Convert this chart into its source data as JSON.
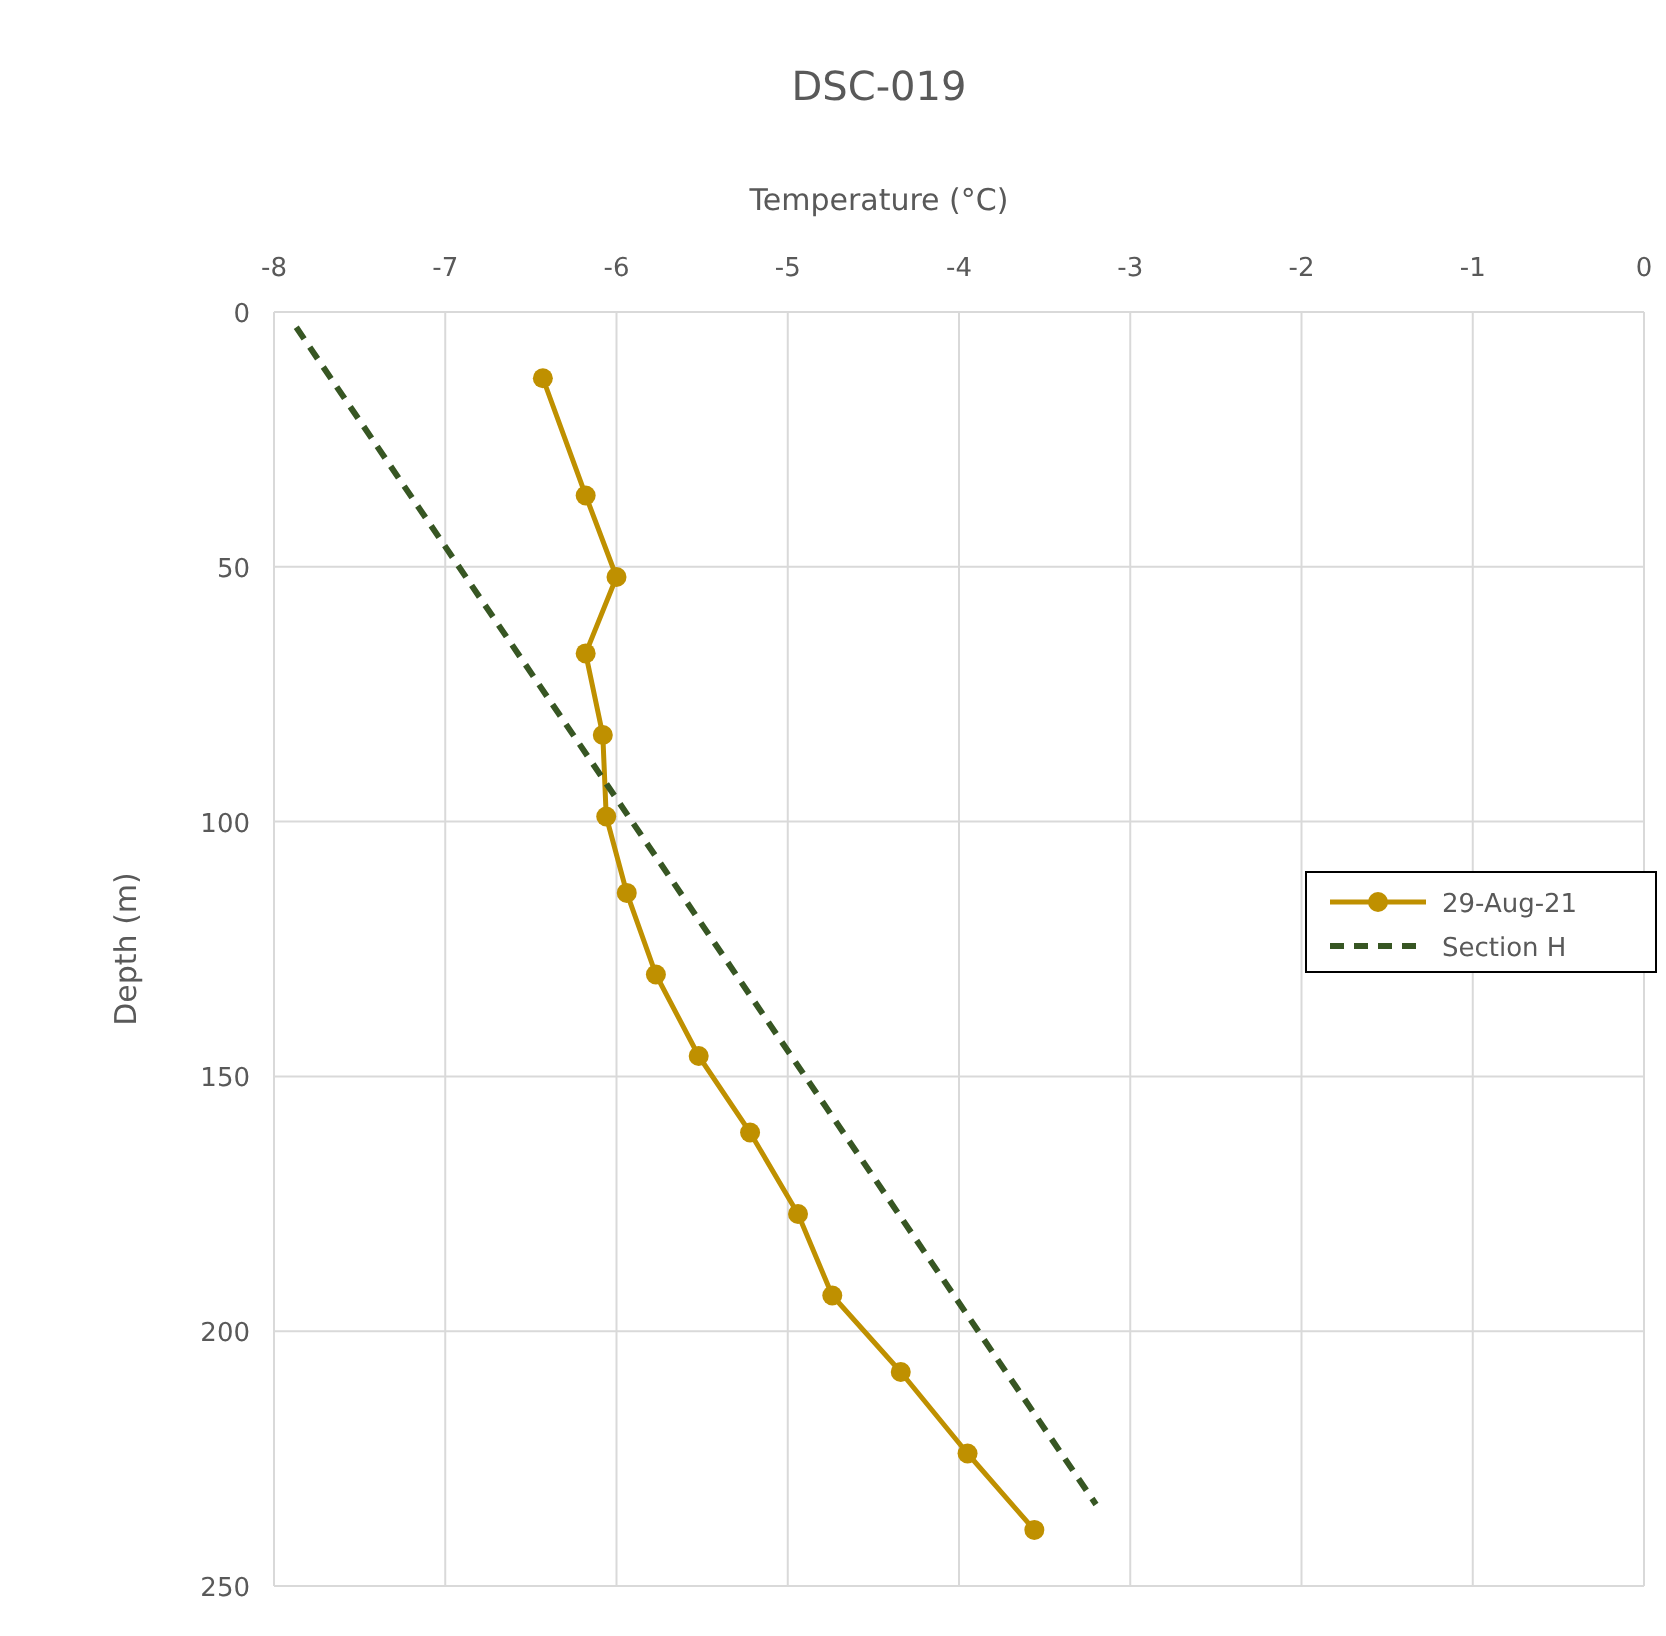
{
  "chart_data": {
    "type": "line",
    "title": "DSC-019",
    "xlabel": "Temperature (°C)",
    "ylabel": "Depth (m)",
    "xlim": [
      -8,
      0
    ],
    "xticks": [
      -8,
      -7,
      -6,
      -5,
      -4,
      -3,
      -2,
      -1,
      0
    ],
    "ylim": [
      250,
      0
    ],
    "yticks": [
      0,
      50,
      100,
      150,
      200,
      250
    ],
    "grid": true,
    "legend": "right",
    "series": [
      {
        "name": "29-Aug-21",
        "color": "#bf9000",
        "marker": "circle",
        "line_style": "solid",
        "x": [
          -6.43,
          -6.18,
          -6.0,
          -6.18,
          -6.08,
          -6.06,
          -5.94,
          -5.77,
          -5.52,
          -5.22,
          -4.94,
          -4.74,
          -4.34,
          -3.95,
          -3.56
        ],
        "values": [
          13,
          36,
          52,
          67,
          83,
          99,
          114,
          130,
          146,
          161,
          177,
          193,
          208,
          224,
          239
        ]
      },
      {
        "name": "Section H",
        "color": "#375623",
        "marker": "none",
        "line_style": "dashed",
        "x": [
          -7.87,
          -3.2
        ],
        "values": [
          3,
          234
        ]
      }
    ]
  }
}
